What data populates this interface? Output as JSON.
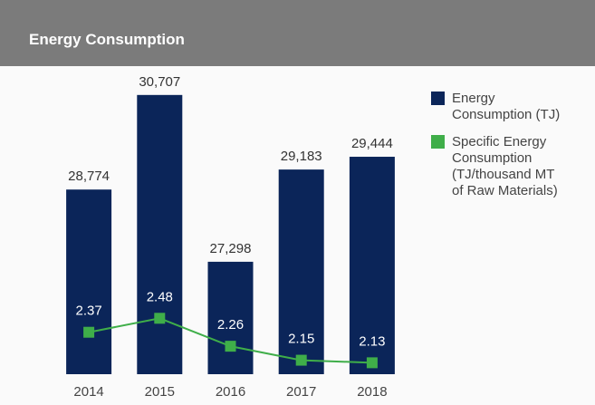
{
  "chart_data": {
    "type": "bar_line",
    "title": "Energy Consumption",
    "categories": [
      "2014",
      "2015",
      "2016",
      "2017",
      "2018"
    ],
    "series": [
      {
        "name": "Energy Consumption (TJ)",
        "color": "#0b2559",
        "type": "bar",
        "values": [
          28774,
          30707,
          27298,
          29183,
          29444
        ],
        "value_labels": [
          "28,774",
          "30,707",
          "27,298",
          "29,183",
          "29,444"
        ]
      },
      {
        "name": "Specific Energy Consumption (TJ/thousand MT of Raw Materials)",
        "color": "#3fae49",
        "type": "line",
        "axis": "y2",
        "values": [
          2.37,
          2.48,
          2.26,
          2.15,
          2.13
        ]
      }
    ],
    "ylim": [
      25000,
      31000
    ],
    "y2lim": [
      2.04,
      4.35
    ],
    "legend": "right"
  }
}
